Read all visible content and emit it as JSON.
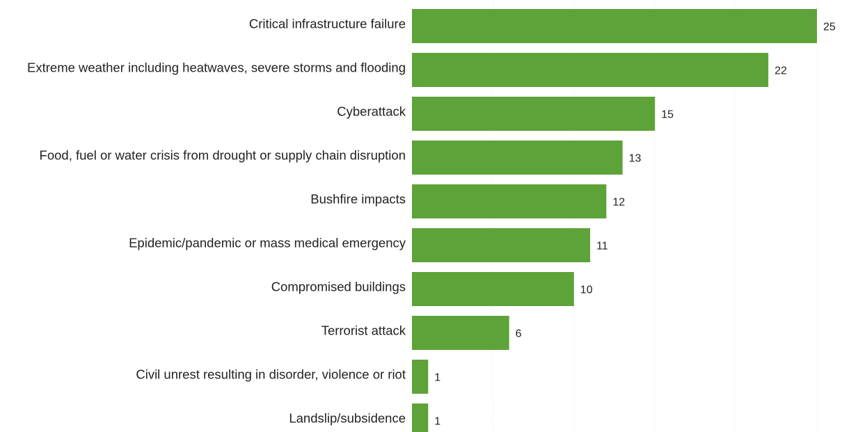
{
  "chart_data": {
    "type": "bar",
    "orientation": "horizontal",
    "title": "",
    "xlabel": "",
    "ylabel": "",
    "categories": [
      "Critical infrastructure failure",
      "Extreme weather including heatwaves, severe storms and flooding",
      "Cyberattack",
      "Food, fuel or water crisis from drought or supply chain disruption",
      "Bushfire impacts",
      "Epidemic/pandemic or mass medical emergency",
      "Compromised buildings",
      "Terrorist attack",
      "Civil unrest resulting in disorder, violence or riot",
      "Landslip/subsidence"
    ],
    "values": [
      25,
      22,
      15,
      13,
      12,
      11,
      10,
      6,
      1,
      1
    ],
    "xlim": [
      0,
      25
    ],
    "grid": true,
    "legend": "none",
    "bar_color": "#5da339"
  }
}
